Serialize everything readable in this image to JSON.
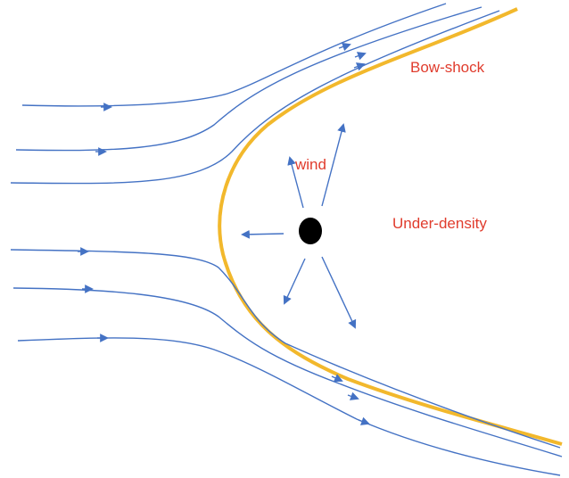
{
  "labels": {
    "bow_shock": "Bow-shock",
    "wind": "wind",
    "under_density": "Under-density"
  },
  "colors": {
    "background": "#ffffff",
    "flow": "#4472c4",
    "bow_shock": "#f2b82c",
    "label_red": "#e03c2d",
    "body": "#000000"
  }
}
